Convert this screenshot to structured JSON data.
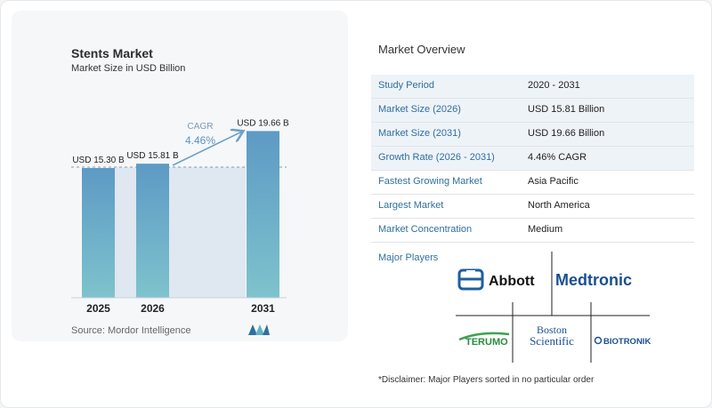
{
  "chart": {
    "title": "Stents Market",
    "subtitle": "Market Size in USD Billion",
    "source": "Source: Mordor Intelligence",
    "cagr_label": "CAGR",
    "cagr_value": "4.46%"
  },
  "chart_data": {
    "type": "bar",
    "categories": [
      "2025",
      "2026",
      "2031"
    ],
    "values": [
      15.3,
      15.81,
      19.66
    ],
    "data_labels": [
      "USD 15.30 B",
      "USD 15.81 B",
      "USD 19.66 B"
    ],
    "title": "Stents Market",
    "subtitle": "Market Size in USD Billion",
    "xlabel": "",
    "ylabel": "",
    "colors": {
      "bar_top": "#5d9ac5",
      "bar_bottom": "#7ec3cd",
      "band": "#dfe7f0",
      "arrow": "#6da0c8"
    }
  },
  "overview": {
    "title": "Market Overview",
    "rows": [
      {
        "label": "Study Period",
        "value": "2020 - 2031"
      },
      {
        "label": "Market Size (2026)",
        "value": "USD 15.81 Billion"
      },
      {
        "label": "Market Size (2031)",
        "value": "USD 19.66 Billion"
      },
      {
        "label": "Growth Rate (2026 - 2031)",
        "value": "4.46% CAGR"
      },
      {
        "label": "Fastest Growing Market",
        "value": "Asia Pacific"
      },
      {
        "label": "Largest Market",
        "value": "North America"
      },
      {
        "label": "Market Concentration",
        "value": "Medium"
      }
    ]
  },
  "players": {
    "title": "Major Players",
    "logos": {
      "abbott": "Abbott",
      "medtronic": "Medtronic",
      "terumo": "TERUMO",
      "boston_line1": "Boston",
      "boston_line2": "Scientific",
      "biotronik": "BIOTRONIK"
    },
    "disclaimer": "*Disclaimer: Major Players sorted in no particular order"
  }
}
